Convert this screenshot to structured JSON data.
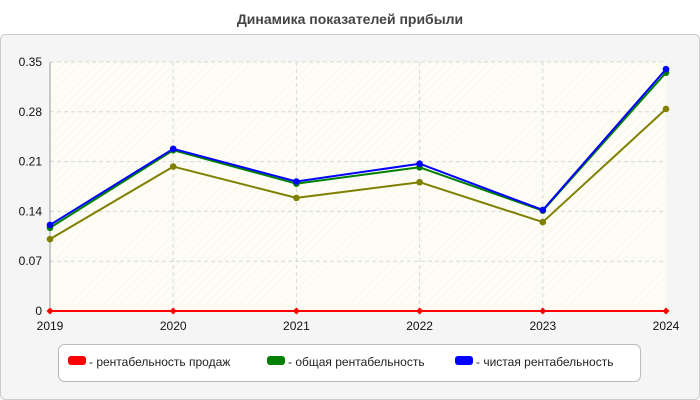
{
  "chart_data": {
    "type": "line",
    "title": "Динамика показателей прибыли",
    "xlabel": "",
    "ylabel": "",
    "categories": [
      "2019",
      "2020",
      "2021",
      "2022",
      "2023",
      "2024"
    ],
    "ylim": [
      0,
      0.35
    ],
    "yticks": [
      "0",
      "0.07",
      "0.14",
      "0.21",
      "0.28",
      "0.35"
    ],
    "grid": true,
    "legend_position": "bottom",
    "series": [
      {
        "name": "- рентабельность продаж",
        "color": "#ff0000",
        "values": [
          0,
          0,
          0,
          0,
          0,
          0
        ],
        "marker": "diamond"
      },
      {
        "name": "- общая рентабельность",
        "color": "#008000",
        "values": [
          0.117,
          0.226,
          0.179,
          0.202,
          0.141,
          0.335
        ],
        "marker": "circle"
      },
      {
        "name": "- чистая рентабельность",
        "color": "#0000ff",
        "values": [
          0.121,
          0.228,
          0.182,
          0.207,
          0.142,
          0.34
        ],
        "marker": "circle"
      },
      {
        "name": "",
        "color": "#808000",
        "values": [
          0.101,
          0.203,
          0.159,
          0.181,
          0.125,
          0.284
        ],
        "marker": "circle"
      }
    ]
  }
}
